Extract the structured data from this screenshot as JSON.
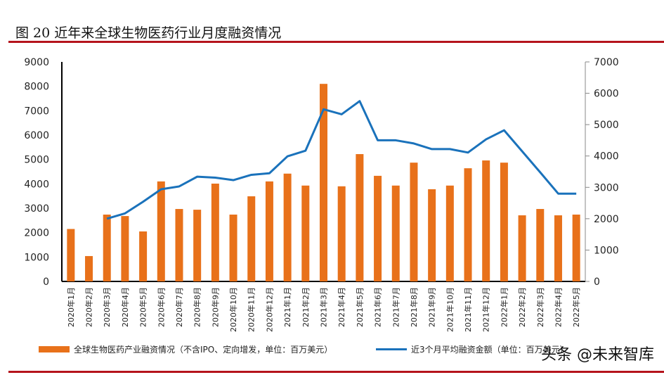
{
  "title": "图 20  近年来全球生物医药行业月度融资情况",
  "watermark": "头条 @未来智库",
  "colors": {
    "bar": "#e8711a",
    "line": "#1a72bb",
    "rule": "#b5141c"
  },
  "chart_data": {
    "type": "bar+line",
    "title": "图 20  近年来全球生物医药行业月度融资情况",
    "categories": [
      "2020年1月",
      "2020年2月",
      "2020年3月",
      "2020年4月",
      "2020年5月",
      "2020年6月",
      "2020年7月",
      "2020年8月",
      "2020年9月",
      "2020年10月",
      "2020年11月",
      "2020年12月",
      "2021年1月",
      "2021年2月",
      "2021年3月",
      "2021年4月",
      "2021年5月",
      "2021年6月",
      "2021年7月",
      "2021年8月",
      "2021年9月",
      "2021年10月",
      "2021年11月",
      "2021年12月",
      "2022年1月",
      "2022年2月",
      "2022年3月",
      "2022年4月",
      "2022年5月"
    ],
    "left_axis": {
      "ylim": [
        0,
        9000
      ],
      "ticks": [
        "0",
        "1000",
        "2000",
        "3000",
        "4000",
        "5000",
        "6000",
        "7000",
        "8000",
        "9000"
      ]
    },
    "right_axis": {
      "ylim": [
        0,
        7000
      ],
      "ticks": [
        "0",
        "1000",
        "2000",
        "3000",
        "4000",
        "5000",
        "6000",
        "7000"
      ]
    },
    "series": [
      {
        "name": "全球生物医药产业融资情况（不含IPO、定向增发，单位：百万美元）",
        "type": "bar",
        "axis": "left",
        "values": [
          2150,
          1040,
          2740,
          2680,
          2050,
          4100,
          2970,
          2940,
          4010,
          2740,
          3490,
          4100,
          4420,
          3930,
          8100,
          3900,
          5220,
          4330,
          3930,
          4870,
          3780,
          3930,
          4640,
          4960,
          4870,
          2710,
          2970,
          2710,
          2740
        ]
      },
      {
        "name": "近3个月平均融资金额（单位：百万美元）",
        "type": "line",
        "axis": "right",
        "values": [
          null,
          null,
          2000,
          2170,
          2540,
          2940,
          3030,
          3340,
          3310,
          3230,
          3400,
          3450,
          3990,
          4170,
          5490,
          5330,
          5750,
          4500,
          4500,
          4400,
          4220,
          4220,
          4110,
          4530,
          4820,
          4150,
          3480,
          2800,
          2800
        ]
      }
    ],
    "legend": "bottom",
    "grid": false
  }
}
